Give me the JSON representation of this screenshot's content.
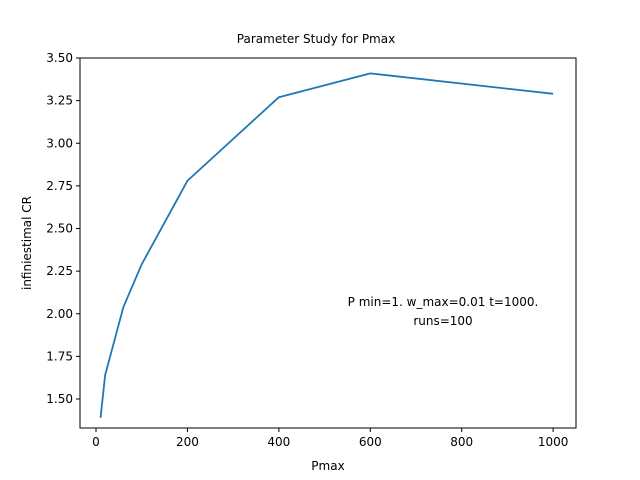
{
  "chart_data": {
    "type": "line",
    "title": "Parameter Study for Pmax",
    "xlabel": "Pmax",
    "ylabel": "infiniestimal CR",
    "xlim": [
      -35,
      1050
    ],
    "ylim": [
      1.33,
      3.5
    ],
    "xticks": [
      0,
      200,
      400,
      600,
      800,
      1000
    ],
    "xtick_labels": [
      "0",
      "200",
      "400",
      "600",
      "800",
      "1000"
    ],
    "yticks": [
      1.5,
      1.75,
      2.0,
      2.25,
      2.5,
      2.75,
      3.0,
      3.25,
      3.5
    ],
    "ytick_labels": [
      "1.50",
      "1.75",
      "2.00",
      "2.25",
      "2.50",
      "2.75",
      "3.00",
      "3.25",
      "3.50"
    ],
    "grid": false,
    "series": [
      {
        "color": "#1f77b4",
        "x": [
          10,
          20,
          60,
          100,
          200,
          400,
          600,
          1000
        ],
        "y": [
          1.39,
          1.64,
          2.04,
          2.29,
          2.78,
          3.27,
          3.41,
          3.29
        ]
      }
    ],
    "annotation": {
      "lines": [
        "P min=1. w_max=0.01 t=1000.",
        "runs=100"
      ],
      "x": 800,
      "y": 2.0
    }
  }
}
